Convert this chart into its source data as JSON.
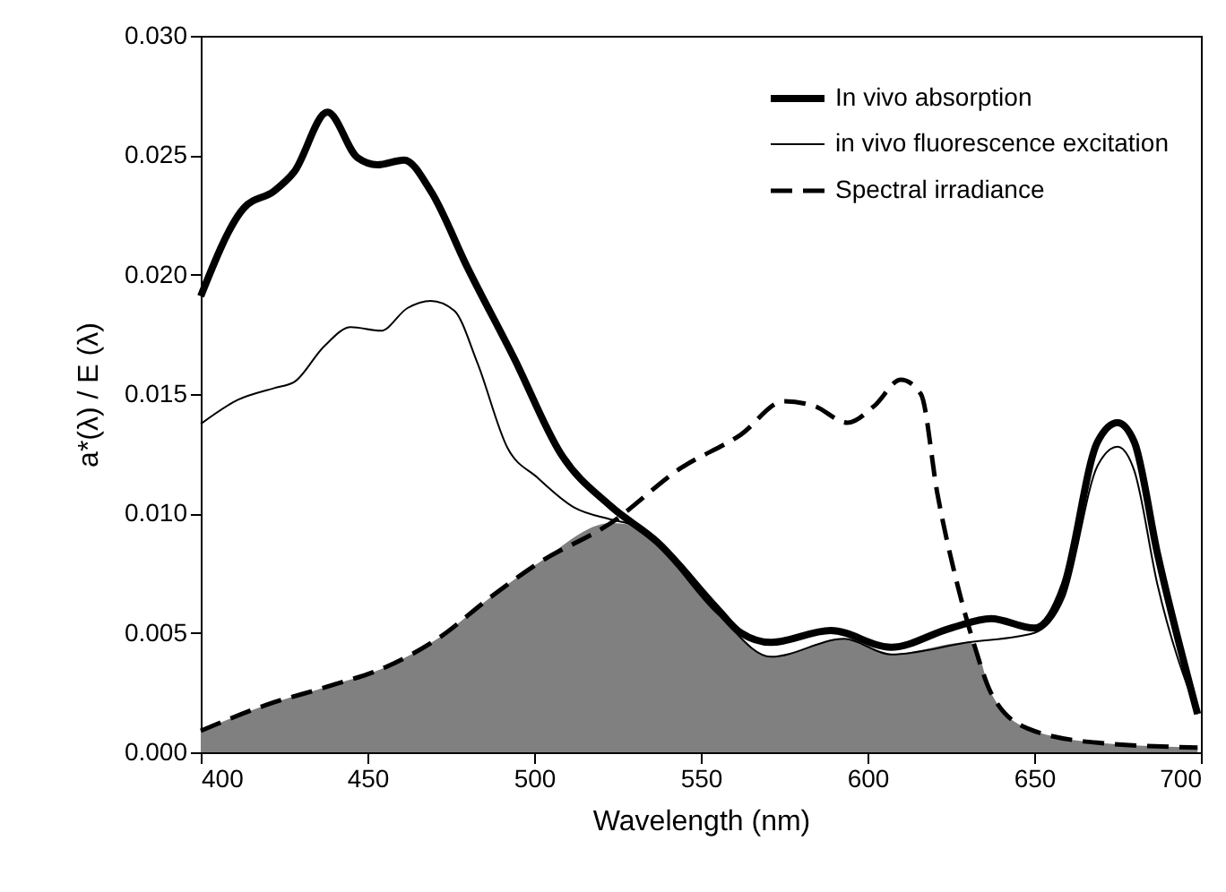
{
  "chart_data": {
    "type": "line",
    "xlabel": "Wavelength (nm)",
    "ylabel": "a*(λ) / E (λ)",
    "xlim": [
      400,
      700
    ],
    "xticks": [
      400,
      450,
      500,
      550,
      600,
      650,
      700
    ],
    "ylim": [
      0,
      0.03
    ],
    "yticks": [
      {
        "value": 0,
        "label": "0.000"
      },
      {
        "value": 0.005,
        "label": "0.005"
      },
      {
        "value": 0.01,
        "label": "0.010"
      },
      {
        "value": 0.015,
        "label": "0.015"
      },
      {
        "value": 0.02,
        "label": "0.020"
      },
      {
        "value": 0.025,
        "label": "0.025"
      },
      {
        "value": 0.03,
        "label": "0.030"
      }
    ],
    "grid": false,
    "legend": "top right",
    "marker": "none",
    "series": [
      {
        "type": "area",
        "color": "#808080",
        "x": [
          400,
          420,
          438,
          456,
          471,
          487,
          501,
          523,
          530,
          555,
          571,
          593,
          607,
          630,
          632,
          637,
          648,
          669,
          699
        ],
        "values": [
          0.0009,
          0.002,
          0.00275,
          0.0036,
          0.00475,
          0.0065,
          0.0079,
          0.0096,
          0.0095,
          0.0058,
          0.004,
          0.00475,
          0.0041,
          0.0046,
          0.0045,
          0.0025,
          0.001,
          0.0004,
          0.0002
        ]
      },
      {
        "name": "In vivo absorption",
        "color": "#000000",
        "line_style": "solid",
        "x": [
          400,
          413,
          422,
          428,
          438,
          447,
          453,
          461,
          469,
          480,
          494,
          508,
          523,
          537,
          555,
          562,
          571,
          589,
          607,
          625,
          637,
          650,
          659,
          669,
          675,
          680,
          687,
          699
        ],
        "values": [
          0.0191,
          0.0228,
          0.0235,
          0.0243,
          0.0268,
          0.0249,
          0.0246,
          0.0248,
          0.0235,
          0.0203,
          0.0165,
          0.0125,
          0.0103,
          0.0088,
          0.006,
          0.005,
          0.0046,
          0.0051,
          0.0044,
          0.0052,
          0.0056,
          0.0052,
          0.007,
          0.013,
          0.0138,
          0.013,
          0.0083,
          0.0016
        ]
      },
      {
        "name": "in vivo fluorescence excitation",
        "color": "#000000",
        "line_style": "solid",
        "x": [
          400,
          411,
          422,
          428,
          437,
          445,
          454,
          462,
          469,
          476,
          483,
          492,
          501,
          512,
          523,
          530,
          555,
          571,
          593,
          607,
          630,
          650,
          659,
          669,
          675,
          680,
          687,
          699
        ],
        "values": [
          0.01375,
          0.01475,
          0.01525,
          0.0155,
          0.017,
          0.0178,
          0.01765,
          0.0186,
          0.0189,
          0.0185,
          0.0163,
          0.01275,
          0.0115,
          0.01025,
          0.00975,
          0.0095,
          0.0058,
          0.004,
          0.00475,
          0.0041,
          0.0046,
          0.005,
          0.0065,
          0.012,
          0.0128,
          0.0118,
          0.007,
          0.0016
        ]
      },
      {
        "name": "Spectral irradiance",
        "color": "#000000",
        "line_style": "dashed",
        "x": [
          400,
          420,
          438,
          456,
          471,
          487,
          501,
          523,
          544,
          562,
          575,
          584,
          594,
          602,
          610,
          616,
          621,
          627,
          632,
          637,
          648,
          669,
          699
        ],
        "values": [
          0.0009,
          0.002,
          0.00275,
          0.0036,
          0.00475,
          0.0065,
          0.0079,
          0.0096,
          0.0119,
          0.0133,
          0.0147,
          0.0145,
          0.0138,
          0.0145,
          0.0156,
          0.015,
          0.0108,
          0.007,
          0.0045,
          0.0025,
          0.001,
          0.0004,
          0.0002
        ]
      }
    ]
  }
}
